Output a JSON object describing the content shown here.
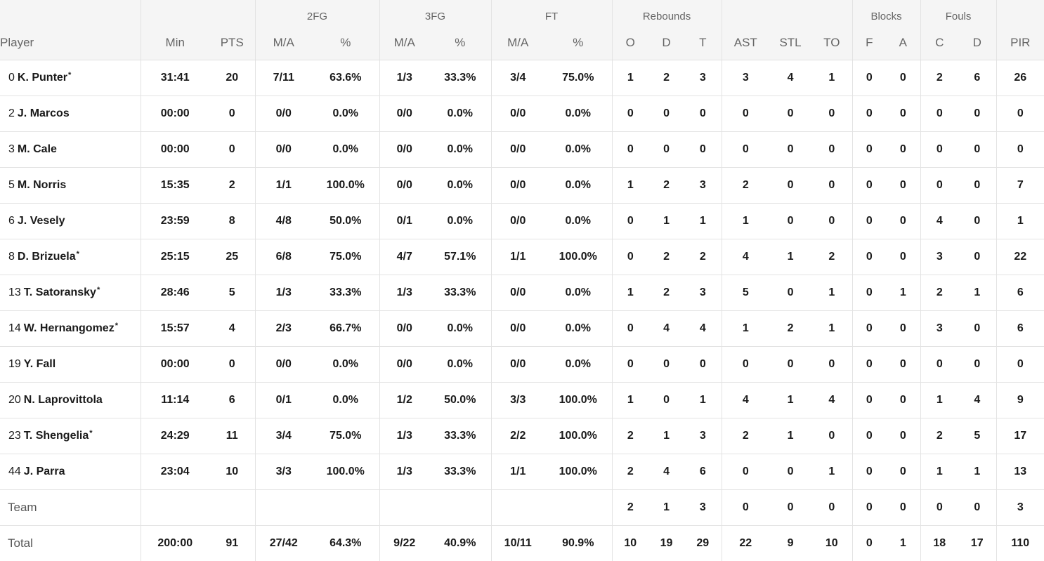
{
  "group_headers": {
    "fg2": "2FG",
    "fg3": "3FG",
    "ft": "FT",
    "rebounds": "Rebounds",
    "blocks": "Blocks",
    "fouls": "Fouls"
  },
  "columns": {
    "player": "Player",
    "min": "Min",
    "pts": "PTS",
    "fg2_ma": "M/A",
    "fg2_pct": "%",
    "fg3_ma": "M/A",
    "fg3_pct": "%",
    "ft_ma": "M/A",
    "ft_pct": "%",
    "reb_o": "O",
    "reb_d": "D",
    "reb_t": "T",
    "ast": "AST",
    "stl": "STL",
    "to": "TO",
    "blk_f": "F",
    "blk_a": "A",
    "foul_c": "C",
    "foul_d": "D",
    "pir": "PIR"
  },
  "starter_marker": "*",
  "rows": [
    {
      "num": "0",
      "name": "K. Punter",
      "starter": true,
      "min": "31:41",
      "pts": "20",
      "fg2_ma": "7/11",
      "fg2_pct": "63.6%",
      "fg3_ma": "1/3",
      "fg3_pct": "33.3%",
      "ft_ma": "3/4",
      "ft_pct": "75.0%",
      "reb_o": "1",
      "reb_d": "2",
      "reb_t": "3",
      "ast": "3",
      "stl": "4",
      "to": "1",
      "blk_f": "0",
      "blk_a": "0",
      "foul_c": "2",
      "foul_d": "6",
      "pir": "26"
    },
    {
      "num": "2",
      "name": "J. Marcos",
      "starter": false,
      "min": "00:00",
      "pts": "0",
      "fg2_ma": "0/0",
      "fg2_pct": "0.0%",
      "fg3_ma": "0/0",
      "fg3_pct": "0.0%",
      "ft_ma": "0/0",
      "ft_pct": "0.0%",
      "reb_o": "0",
      "reb_d": "0",
      "reb_t": "0",
      "ast": "0",
      "stl": "0",
      "to": "0",
      "blk_f": "0",
      "blk_a": "0",
      "foul_c": "0",
      "foul_d": "0",
      "pir": "0"
    },
    {
      "num": "3",
      "name": "M. Cale",
      "starter": false,
      "min": "00:00",
      "pts": "0",
      "fg2_ma": "0/0",
      "fg2_pct": "0.0%",
      "fg3_ma": "0/0",
      "fg3_pct": "0.0%",
      "ft_ma": "0/0",
      "ft_pct": "0.0%",
      "reb_o": "0",
      "reb_d": "0",
      "reb_t": "0",
      "ast": "0",
      "stl": "0",
      "to": "0",
      "blk_f": "0",
      "blk_a": "0",
      "foul_c": "0",
      "foul_d": "0",
      "pir": "0"
    },
    {
      "num": "5",
      "name": "M. Norris",
      "starter": false,
      "min": "15:35",
      "pts": "2",
      "fg2_ma": "1/1",
      "fg2_pct": "100.0%",
      "fg3_ma": "0/0",
      "fg3_pct": "0.0%",
      "ft_ma": "0/0",
      "ft_pct": "0.0%",
      "reb_o": "1",
      "reb_d": "2",
      "reb_t": "3",
      "ast": "2",
      "stl": "0",
      "to": "0",
      "blk_f": "0",
      "blk_a": "0",
      "foul_c": "0",
      "foul_d": "0",
      "pir": "7"
    },
    {
      "num": "6",
      "name": "J. Vesely",
      "starter": false,
      "min": "23:59",
      "pts": "8",
      "fg2_ma": "4/8",
      "fg2_pct": "50.0%",
      "fg3_ma": "0/1",
      "fg3_pct": "0.0%",
      "ft_ma": "0/0",
      "ft_pct": "0.0%",
      "reb_o": "0",
      "reb_d": "1",
      "reb_t": "1",
      "ast": "1",
      "stl": "0",
      "to": "0",
      "blk_f": "0",
      "blk_a": "0",
      "foul_c": "4",
      "foul_d": "0",
      "pir": "1"
    },
    {
      "num": "8",
      "name": "D. Brizuela",
      "starter": true,
      "min": "25:15",
      "pts": "25",
      "fg2_ma": "6/8",
      "fg2_pct": "75.0%",
      "fg3_ma": "4/7",
      "fg3_pct": "57.1%",
      "ft_ma": "1/1",
      "ft_pct": "100.0%",
      "reb_o": "0",
      "reb_d": "2",
      "reb_t": "2",
      "ast": "4",
      "stl": "1",
      "to": "2",
      "blk_f": "0",
      "blk_a": "0",
      "foul_c": "3",
      "foul_d": "0",
      "pir": "22"
    },
    {
      "num": "13",
      "name": "T. Satoransky",
      "starter": true,
      "min": "28:46",
      "pts": "5",
      "fg2_ma": "1/3",
      "fg2_pct": "33.3%",
      "fg3_ma": "1/3",
      "fg3_pct": "33.3%",
      "ft_ma": "0/0",
      "ft_pct": "0.0%",
      "reb_o": "1",
      "reb_d": "2",
      "reb_t": "3",
      "ast": "5",
      "stl": "0",
      "to": "1",
      "blk_f": "0",
      "blk_a": "1",
      "foul_c": "2",
      "foul_d": "1",
      "pir": "6"
    },
    {
      "num": "14",
      "name": "W. Hernangomez",
      "starter": true,
      "min": "15:57",
      "pts": "4",
      "fg2_ma": "2/3",
      "fg2_pct": "66.7%",
      "fg3_ma": "0/0",
      "fg3_pct": "0.0%",
      "ft_ma": "0/0",
      "ft_pct": "0.0%",
      "reb_o": "0",
      "reb_d": "4",
      "reb_t": "4",
      "ast": "1",
      "stl": "2",
      "to": "1",
      "blk_f": "0",
      "blk_a": "0",
      "foul_c": "3",
      "foul_d": "0",
      "pir": "6"
    },
    {
      "num": "19",
      "name": "Y. Fall",
      "starter": false,
      "min": "00:00",
      "pts": "0",
      "fg2_ma": "0/0",
      "fg2_pct": "0.0%",
      "fg3_ma": "0/0",
      "fg3_pct": "0.0%",
      "ft_ma": "0/0",
      "ft_pct": "0.0%",
      "reb_o": "0",
      "reb_d": "0",
      "reb_t": "0",
      "ast": "0",
      "stl": "0",
      "to": "0",
      "blk_f": "0",
      "blk_a": "0",
      "foul_c": "0",
      "foul_d": "0",
      "pir": "0"
    },
    {
      "num": "20",
      "name": "N. Laprovittola",
      "starter": false,
      "min": "11:14",
      "pts": "6",
      "fg2_ma": "0/1",
      "fg2_pct": "0.0%",
      "fg3_ma": "1/2",
      "fg3_pct": "50.0%",
      "ft_ma": "3/3",
      "ft_pct": "100.0%",
      "reb_o": "1",
      "reb_d": "0",
      "reb_t": "1",
      "ast": "4",
      "stl": "1",
      "to": "4",
      "blk_f": "0",
      "blk_a": "0",
      "foul_c": "1",
      "foul_d": "4",
      "pir": "9"
    },
    {
      "num": "23",
      "name": "T. Shengelia",
      "starter": true,
      "min": "24:29",
      "pts": "11",
      "fg2_ma": "3/4",
      "fg2_pct": "75.0%",
      "fg3_ma": "1/3",
      "fg3_pct": "33.3%",
      "ft_ma": "2/2",
      "ft_pct": "100.0%",
      "reb_o": "2",
      "reb_d": "1",
      "reb_t": "3",
      "ast": "2",
      "stl": "1",
      "to": "0",
      "blk_f": "0",
      "blk_a": "0",
      "foul_c": "2",
      "foul_d": "5",
      "pir": "17"
    },
    {
      "num": "44",
      "name": "J. Parra",
      "starter": false,
      "min": "23:04",
      "pts": "10",
      "fg2_ma": "3/3",
      "fg2_pct": "100.0%",
      "fg3_ma": "1/3",
      "fg3_pct": "33.3%",
      "ft_ma": "1/1",
      "ft_pct": "100.0%",
      "reb_o": "2",
      "reb_d": "4",
      "reb_t": "6",
      "ast": "0",
      "stl": "0",
      "to": "1",
      "blk_f": "0",
      "blk_a": "0",
      "foul_c": "1",
      "foul_d": "1",
      "pir": "13"
    }
  ],
  "team_row": {
    "name": "Team",
    "min": "",
    "pts": "",
    "fg2_ma": "",
    "fg2_pct": "",
    "fg3_ma": "",
    "fg3_pct": "",
    "ft_ma": "",
    "ft_pct": "",
    "reb_o": "2",
    "reb_d": "1",
    "reb_t": "3",
    "ast": "0",
    "stl": "0",
    "to": "0",
    "blk_f": "0",
    "blk_a": "0",
    "foul_c": "0",
    "foul_d": "0",
    "pir": "3"
  },
  "total_row": {
    "name": "Total",
    "min": "200:00",
    "pts": "91",
    "fg2_ma": "27/42",
    "fg2_pct": "64.3%",
    "fg3_ma": "9/22",
    "fg3_pct": "40.9%",
    "ft_ma": "10/11",
    "ft_pct": "90.9%",
    "reb_o": "10",
    "reb_d": "19",
    "reb_t": "29",
    "ast": "22",
    "stl": "9",
    "to": "10",
    "blk_f": "0",
    "blk_a": "1",
    "foul_c": "18",
    "foul_d": "17",
    "pir": "110"
  }
}
